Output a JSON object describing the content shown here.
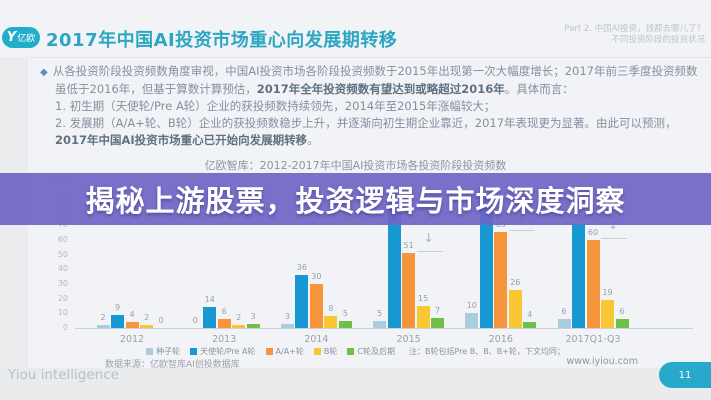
{
  "header": {
    "logo_mark": "Y",
    "logo_text": "亿欧",
    "title": "2017年中国AI投资市场重心向发展期转移",
    "part_label_line1": "Part 2. 中国AI投资，钱都去哪儿了？",
    "part_label_line2": "不同投资阶段的投资状况"
  },
  "body": {
    "bullet_glyph": "◆",
    "para1_a": "从各投资阶段投资频数角度审视，中国AI投资市场各阶段投资频数于2015年出现第一次大幅度增长；2017年前三季度投资频数虽低于2016年，但基于算数计算预估，",
    "para1_b": "2017年全年投资频数有望达到或略超过2016年",
    "para1_c": "。具体而言：",
    "item1": "1.  初生期（天使轮/Pre A轮）企业的获投频数持续领先，2014年至2015年涨幅较大；",
    "item2_a": "2.  发展期（A/A+轮、B轮）企业的获投频数稳步上升，并逐渐向初生期企业靠近，2017年表现更为显著。由此可以预测，",
    "item2_b": "2017年中国AI投资市场重心已开始向发展期转移",
    "item2_c": "。"
  },
  "overlay_banner": {
    "text": "揭秘上游股票，投资逻辑与市场深度洞察",
    "background": "#7065c6"
  },
  "chart_data": {
    "type": "bar",
    "title": "亿欧智库：2012-2017年中国AI投资市场各投资阶段投资频数",
    "categories": [
      "2012",
      "2013",
      "2014",
      "2015",
      "2016",
      "2017Q1-Q3"
    ],
    "series": [
      {
        "name": "种子轮",
        "color": "#a9cdde",
        "values": [
          2,
          0,
          3,
          5,
          10,
          6
        ]
      },
      {
        "name": "天使轮/Pre A轮",
        "color": "#1898d2",
        "values": [
          9,
          14,
          36,
          90,
          91,
          71
        ]
      },
      {
        "name": "A/A+轮",
        "color": "#f6953c",
        "values": [
          4,
          6,
          30,
          51,
          65,
          60
        ]
      },
      {
        "name": "B轮",
        "color": "#f9c733",
        "values": [
          2,
          2,
          8,
          15,
          26,
          19
        ]
      },
      {
        "name": "C轮及后期",
        "color": "#6fbf4a",
        "values": [
          0,
          3,
          5,
          7,
          4,
          6
        ]
      }
    ],
    "ylim": [
      0,
      100
    ],
    "yticks": [
      0,
      10,
      20,
      30,
      40,
      50,
      60,
      70,
      80,
      90,
      100
    ],
    "grid": false,
    "legend_position": "bottom",
    "legend_note": "注：B轮包括Pre B、B、B+轮，下文均同；",
    "annotations": [
      {
        "series_index": 2,
        "category_index": 3,
        "glyph": "↓"
      },
      {
        "series_index": 2,
        "category_index": 4,
        "glyph": "↓"
      },
      {
        "series_index": 2,
        "category_index": 5,
        "glyph": "↓"
      }
    ]
  },
  "footer": {
    "data_source": "数据来源：亿欧智库AI创投数据库",
    "website": "www.iyiou.com",
    "watermark": "Yiou intelligence",
    "page_number": "11"
  }
}
